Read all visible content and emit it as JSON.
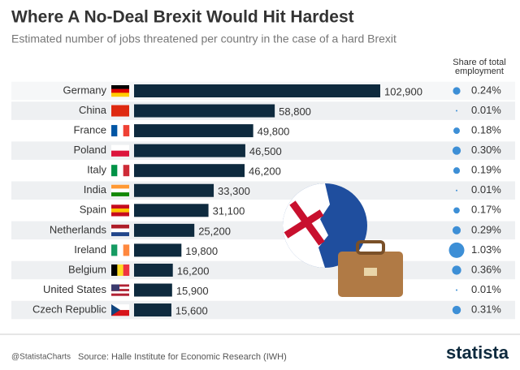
{
  "chart_data": {
    "type": "bar",
    "title": "Where A No-Deal Brexit Would Hit Hardest",
    "subtitle": "Estimated number of jobs threatened per country in the case of a hard Brexit",
    "categories": [
      "Germany",
      "China",
      "France",
      "Poland",
      "Italy",
      "India",
      "Spain",
      "Netherlands",
      "Ireland",
      "Belgium",
      "United States",
      "Czech Republic"
    ],
    "values": [
      102900,
      58800,
      49800,
      46500,
      46200,
      33300,
      31100,
      25200,
      19800,
      16200,
      15900,
      15600
    ],
    "value_labels": [
      "102,900",
      "58,800",
      "49,800",
      "46,500",
      "46,200",
      "33,300",
      "31,100",
      "25,200",
      "19,800",
      "16,200",
      "15,900",
      "15,600"
    ],
    "color": "#0e2a3e",
    "share": {
      "title": "Share of total employment",
      "color": "#3d8fd6",
      "values": [
        0.24,
        0.01,
        0.18,
        0.3,
        0.19,
        0.01,
        0.17,
        0.29,
        1.03,
        0.36,
        0.01,
        0.31
      ],
      "value_labels": [
        "0.24%",
        "0.01%",
        "0.18%",
        "0.30%",
        "0.19%",
        "0.01%",
        "0.17%",
        "0.29%",
        "1.03%",
        "0.36%",
        "0.01%",
        "0.31%"
      ]
    },
    "footer": {
      "handle": "@StatistaCharts",
      "source": "Source: Halle Institute for Economic Research (IWH)",
      "brand": "statista"
    }
  }
}
